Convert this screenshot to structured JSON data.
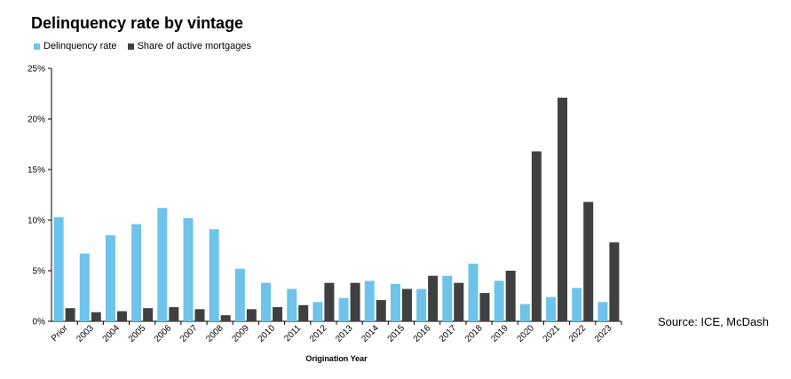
{
  "title": "Delinquency rate by vintage",
  "source": "Source: ICE, McDash",
  "chart_data": {
    "type": "bar",
    "title": "Delinquency rate by vintage",
    "xlabel": "Origination Year",
    "ylabel": "",
    "ylim": [
      0,
      25
    ],
    "yticks": [
      "0%",
      "5%",
      "10%",
      "15%",
      "20%",
      "25%"
    ],
    "ytick_values": [
      0,
      5,
      10,
      15,
      20,
      25
    ],
    "grid": false,
    "legend_position": "top-left",
    "categories": [
      "Prior",
      "2003",
      "2004",
      "2005",
      "2006",
      "2007",
      "2008",
      "2009",
      "2010",
      "2011",
      "2012",
      "2013",
      "2014",
      "2015",
      "2016",
      "2017",
      "2018",
      "2019",
      "2020",
      "2021",
      "2022",
      "2023"
    ],
    "series": [
      {
        "name": "Delinquency rate",
        "color": "#6ec3ea",
        "values": [
          10.3,
          6.7,
          8.5,
          9.6,
          11.2,
          10.2,
          9.1,
          5.2,
          3.8,
          3.2,
          1.9,
          2.3,
          4.0,
          3.7,
          3.2,
          4.5,
          5.7,
          4.0,
          1.7,
          2.4,
          3.3,
          1.9
        ]
      },
      {
        "name": "Share of active mortgages",
        "color": "#404040",
        "values": [
          1.3,
          0.9,
          1.0,
          1.3,
          1.4,
          1.2,
          0.6,
          1.2,
          1.4,
          1.6,
          3.8,
          3.8,
          2.1,
          3.2,
          4.5,
          3.8,
          2.8,
          5.0,
          16.8,
          22.1,
          11.8,
          7.8
        ]
      }
    ]
  }
}
